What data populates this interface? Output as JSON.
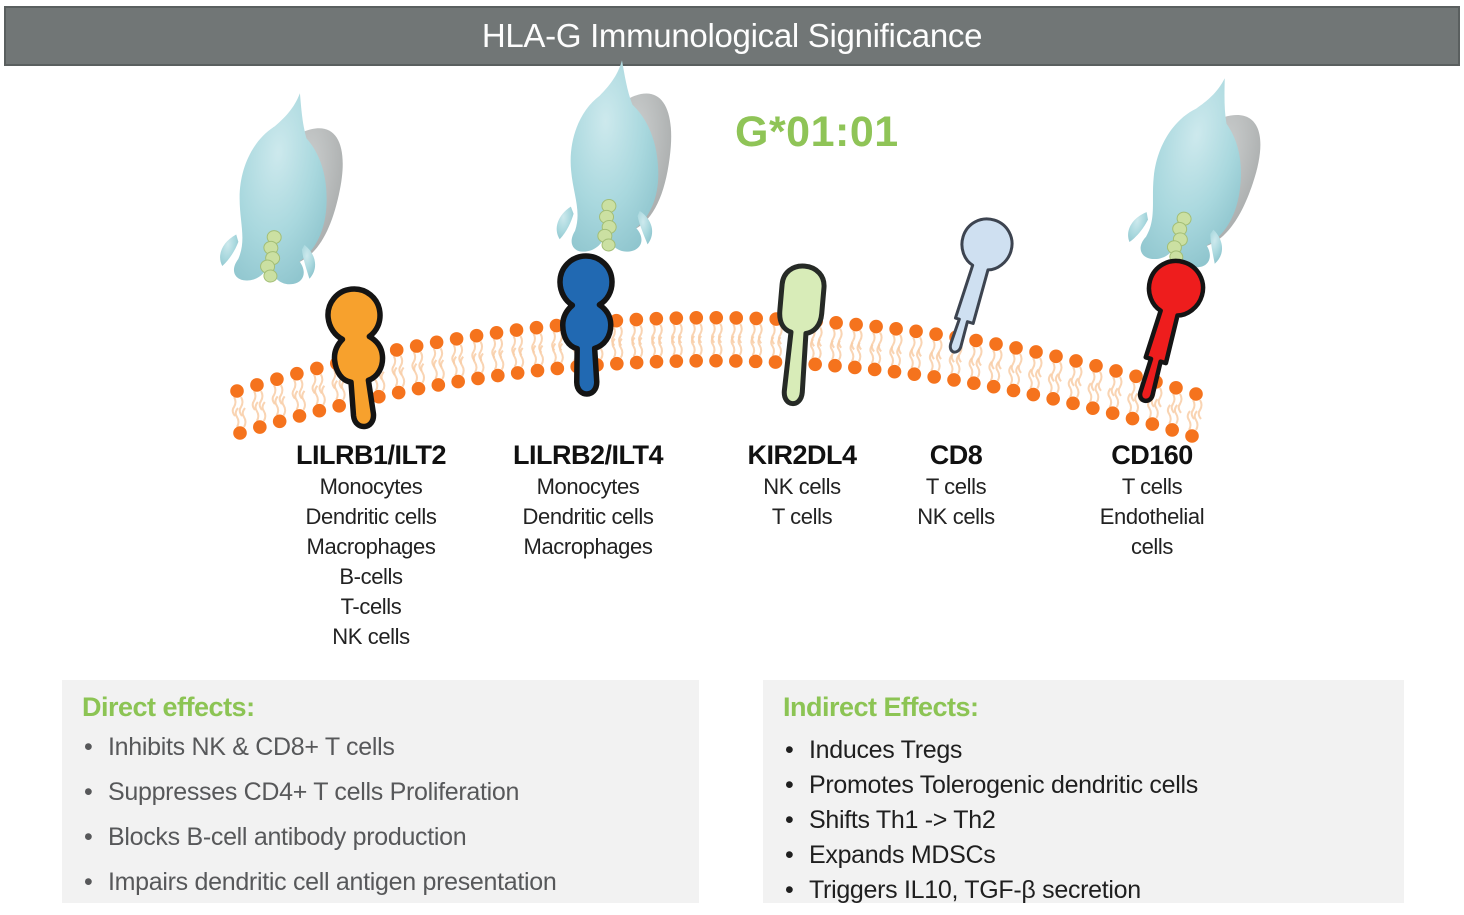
{
  "title": "HLA-G Immunological Significance",
  "allele_label": "G*01:01",
  "molecules": {
    "name": "HLA-G molecule",
    "count": 3
  },
  "membrane": {
    "name": "cell membrane lipid bilayer",
    "head_color": "#f5731d",
    "tail_color": "#f8cda6"
  },
  "receptors": [
    {
      "name": "LILRB1/ILT2",
      "color": "#f7a12d",
      "outline": "#141414",
      "cells": [
        "Monocytes",
        "Dendritic cells",
        "Macrophages",
        "B-cells",
        "T-cells",
        "NK cells"
      ]
    },
    {
      "name": "LILRB2/ILT4",
      "color": "#2169b2",
      "outline": "#141414",
      "cells": [
        "Monocytes",
        "Dendritic cells",
        "Macrophages"
      ]
    },
    {
      "name": "KIR2DL4",
      "color": "#d8ecb8",
      "outline": "#262a26",
      "cells": [
        "NK cells",
        "T cells"
      ]
    },
    {
      "name": "CD8",
      "color": "#cfe0f1",
      "outline": "#3d4450",
      "cells": [
        "T cells",
        "NK cells"
      ]
    },
    {
      "name": "CD160",
      "color": "#ee1d1d",
      "outline": "#141414",
      "cells": [
        "T cells",
        "Endothelial cells"
      ]
    }
  ],
  "direct_effects": {
    "heading": "Direct effects:",
    "items": [
      "Inhibits NK & CD8+ T cells",
      "Suppresses CD4+ T cells Proliferation",
      "Blocks B-cell antibody production",
      "Impairs dendritic cell antigen presentation"
    ]
  },
  "indirect_effects": {
    "heading": "Indirect Effects:",
    "items": [
      "Induces Tregs",
      "Promotes Tolerogenic dendritic cells",
      "Shifts Th1 -> Th2",
      "Expands MDSCs",
      "Triggers IL10, TGF-β secretion"
    ]
  },
  "colors": {
    "accent_green": "#8cc454",
    "title_bar_bg": "#717676",
    "panel_bg": "#f2f2f2",
    "hla_teal": "#a9d8de",
    "hla_gray": "#b5b8b8",
    "peptide_green": "#cbe0a2"
  }
}
